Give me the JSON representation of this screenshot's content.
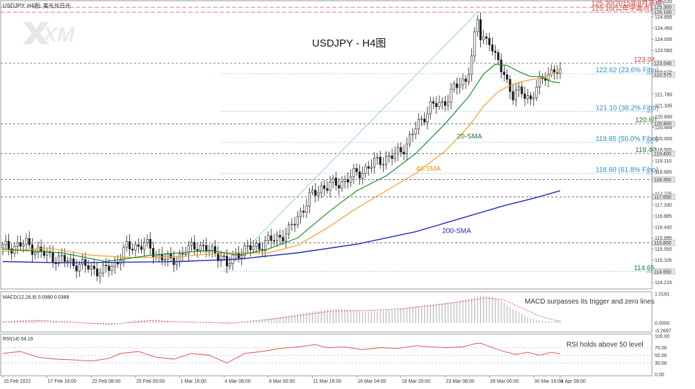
{
  "header": {
    "symbol_label": "USDJPY, H4图: 美元兑日元",
    "watermark": "XM",
    "title": "USDJPY - H4图"
  },
  "chart_data": {
    "type": "candlestick",
    "price_range": [
      114.0,
      125.53
    ],
    "x_index_range": [
      0,
      189
    ],
    "price_ticks": [
      {
        "value": 125.53,
        "label": "125.530"
      },
      {
        "value": 124.895,
        "label": "124.895"
      },
      {
        "value": 124.45,
        "label": "124.450"
      },
      {
        "value": 124.005,
        "label": "124.005"
      },
      {
        "value": 123.56,
        "label": "123.560"
      },
      {
        "value": 122.67,
        "label": "122.670"
      },
      {
        "value": 121.78,
        "label": "121.780"
      },
      {
        "value": 121.335,
        "label": "121.335"
      },
      {
        "value": 120.89,
        "label": "120.890"
      },
      {
        "value": 120.445,
        "label": "120.445"
      },
      {
        "value": 120.0,
        "label": "120.000"
      },
      {
        "value": 119.555,
        "label": "119.555"
      },
      {
        "value": 119.11,
        "label": "119.110"
      },
      {
        "value": 118.665,
        "label": "118.665"
      },
      {
        "value": 117.775,
        "label": "117.775"
      },
      {
        "value": 117.33,
        "label": "117.330"
      },
      {
        "value": 116.885,
        "label": "116.885"
      },
      {
        "value": 116.44,
        "label": "116.440"
      },
      {
        "value": 115.995,
        "label": "115.995"
      },
      {
        "value": 115.55,
        "label": "115.550"
      },
      {
        "value": 115.105,
        "label": "115.105"
      },
      {
        "value": 114.215,
        "label": "114.215"
      }
    ],
    "level_boxes": [
      {
        "value": 125.3,
        "label": "125.300"
      },
      {
        "value": 125.1,
        "label": "125.100"
      },
      {
        "value": 123.04,
        "label": "123.040"
      },
      {
        "value": 122.575,
        "label": "122.575"
      },
      {
        "value": 120.6,
        "label": "120.600"
      },
      {
        "value": 119.4,
        "label": "119.400"
      },
      {
        "value": 118.35,
        "label": "118.350"
      },
      {
        "value": 117.65,
        "label": "117.650"
      },
      {
        "value": 115.8,
        "label": "115.800"
      },
      {
        "value": 114.65,
        "label": "114.650"
      }
    ],
    "x_labels": [
      {
        "i": 0,
        "label": "15 Feb 2022"
      },
      {
        "i": 15,
        "label": "17 Feb 16:00"
      },
      {
        "i": 30,
        "label": "22 Feb 08:00"
      },
      {
        "i": 45,
        "label": "25 Feb 00:00"
      },
      {
        "i": 60,
        "label": "1 Mar 16:00"
      },
      {
        "i": 75,
        "label": "4 Mar 08:00"
      },
      {
        "i": 90,
        "label": "9 Mar 00:00"
      },
      {
        "i": 105,
        "label": "11 Mar 16:00"
      },
      {
        "i": 120,
        "label": "16 Mar 04:00"
      },
      {
        "i": 135,
        "label": "18 Mar 20:00"
      },
      {
        "i": 150,
        "label": "23 Mar 08:00"
      },
      {
        "i": 165,
        "label": "28 Mar 00:00"
      },
      {
        "i": 180,
        "label": "30 Mar 16:00"
      },
      {
        "i": 189,
        "label": "4 Apr 08:00"
      }
    ],
    "horizontal_levels": [
      {
        "value": 125.3,
        "label": "125.30(2015年8月高点)",
        "style": "red-dash"
      },
      {
        "value": 125.1,
        "label": "125.10(公年字高点)",
        "style": "red-dash"
      },
      {
        "value": 123.04,
        "label": "123.04",
        "style": "gray-dash"
      },
      {
        "value": 122.62,
        "label": "122.62 (23.6% Fibo)",
        "style": "fibo",
        "tag": "23.6"
      },
      {
        "value": 121.1,
        "label": "121.10 (38.2% Fibo)",
        "style": "fibo",
        "tag": "38.2"
      },
      {
        "value": 120.6,
        "label": "120.60",
        "style": "gray-dash"
      },
      {
        "value": 119.85,
        "label": "119.85 (50.0% Fibo)",
        "style": "fibo",
        "tag": "50.0"
      },
      {
        "value": 119.4,
        "label": "119.40",
        "style": "gray-dash"
      },
      {
        "value": 118.6,
        "label": "118.60 (61.8% Fibo)",
        "style": "fibo",
        "tag": "61.8"
      },
      {
        "value": 118.35,
        "label": "",
        "style": "gray-dash"
      },
      {
        "value": 117.65,
        "label": "",
        "style": "gray-dash"
      },
      {
        "value": 115.8,
        "label": "",
        "style": "gray-dash"
      },
      {
        "value": 114.65,
        "label": "114.65",
        "style": "fibo",
        "tag": "100.0"
      }
    ],
    "fibo_trendline": [
      {
        "i": 75,
        "v": 114.65
      },
      {
        "i": 161,
        "v": 125.1
      }
    ],
    "sma_labels": [
      {
        "text": "20-SMA",
        "i": 154,
        "v": 120.0
      },
      {
        "text": "40-SMA",
        "i": 140,
        "v": 118.7
      },
      {
        "text": "200-SMA",
        "i": 149,
        "v": 116.2
      }
    ],
    "price_anchors": [
      [
        0,
        115.6
      ],
      [
        8,
        115.75
      ],
      [
        14,
        115.35
      ],
      [
        22,
        115.05
      ],
      [
        28,
        114.85
      ],
      [
        34,
        114.65
      ],
      [
        38,
        114.95
      ],
      [
        42,
        115.6
      ],
      [
        48,
        115.75
      ],
      [
        52,
        115.35
      ],
      [
        57,
        115.05
      ],
      [
        62,
        115.45
      ],
      [
        66,
        115.75
      ],
      [
        70,
        115.45
      ],
      [
        74,
        115.35
      ],
      [
        76,
        114.85
      ],
      [
        80,
        115.45
      ],
      [
        86,
        115.65
      ],
      [
        92,
        115.95
      ],
      [
        97,
        116.25
      ],
      [
        100,
        116.85
      ],
      [
        104,
        117.6
      ],
      [
        108,
        118.05
      ],
      [
        113,
        118.15
      ],
      [
        118,
        118.45
      ],
      [
        124,
        118.85
      ],
      [
        128,
        119.15
      ],
      [
        133,
        119.3
      ],
      [
        137,
        119.8
      ],
      [
        141,
        120.6
      ],
      [
        145,
        121.3
      ],
      [
        149,
        121.4
      ],
      [
        153,
        122.0
      ],
      [
        157,
        122.4
      ],
      [
        159,
        123.3
      ],
      [
        161,
        124.75
      ],
      [
        162,
        124.1
      ],
      [
        165,
        124.0
      ],
      [
        167,
        123.2
      ],
      [
        170,
        122.65
      ],
      [
        173,
        121.7
      ],
      [
        176,
        121.9
      ],
      [
        179,
        121.6
      ],
      [
        182,
        122.2
      ],
      [
        184,
        122.6
      ],
      [
        187,
        122.75
      ],
      [
        189,
        122.55
      ]
    ],
    "sma20": [
      [
        0,
        115.55
      ],
      [
        20,
        115.4
      ],
      [
        35,
        115.05
      ],
      [
        50,
        115.3
      ],
      [
        70,
        115.5
      ],
      [
        80,
        115.3
      ],
      [
        90,
        115.55
      ],
      [
        100,
        116.0
      ],
      [
        110,
        117.0
      ],
      [
        120,
        117.9
      ],
      [
        130,
        118.5
      ],
      [
        140,
        119.4
      ],
      [
        150,
        120.6
      ],
      [
        158,
        121.7
      ],
      [
        163,
        122.6
      ],
      [
        167,
        123.0
      ],
      [
        171,
        122.95
      ],
      [
        175,
        122.7
      ],
      [
        179,
        122.5
      ],
      [
        183,
        122.5
      ],
      [
        186,
        122.3
      ],
      [
        189,
        122.25
      ]
    ],
    "sma40": [
      [
        0,
        115.45
      ],
      [
        15,
        115.6
      ],
      [
        30,
        115.3
      ],
      [
        45,
        115.2
      ],
      [
        60,
        115.25
      ],
      [
        75,
        115.4
      ],
      [
        90,
        115.4
      ],
      [
        100,
        115.7
      ],
      [
        110,
        116.4
      ],
      [
        120,
        117.2
      ],
      [
        130,
        117.9
      ],
      [
        140,
        118.6
      ],
      [
        150,
        119.5
      ],
      [
        158,
        120.5
      ],
      [
        163,
        121.3
      ],
      [
        168,
        121.9
      ],
      [
        173,
        122.2
      ],
      [
        178,
        122.35
      ],
      [
        183,
        122.45
      ],
      [
        189,
        122.7
      ]
    ],
    "sma200": [
      [
        0,
        115.05
      ],
      [
        20,
        115.0
      ],
      [
        40,
        115.02
      ],
      [
        60,
        115.05
      ],
      [
        80,
        115.15
      ],
      [
        100,
        115.4
      ],
      [
        120,
        115.75
      ],
      [
        140,
        116.25
      ],
      [
        150,
        116.6
      ],
      [
        160,
        116.95
      ],
      [
        170,
        117.3
      ],
      [
        180,
        117.6
      ],
      [
        189,
        117.9
      ]
    ],
    "macd": {
      "label": "MACD(12,26,9) 0.0980 0.0388",
      "annotation": "MACD surpasses its trigger and zero lines",
      "range": [
        -0.2697,
        1.0181
      ],
      "ticks": [
        {
          "value": 1.0181,
          "label": "1.0181"
        },
        {
          "value": 0.0,
          "label": "0.0000"
        },
        {
          "value": -0.2697,
          "label": "-0.2697"
        }
      ],
      "anchors": [
        [
          0,
          0.05
        ],
        [
          10,
          0.12
        ],
        [
          20,
          0.04
        ],
        [
          30,
          -0.05
        ],
        [
          36,
          -0.08
        ],
        [
          45,
          0.1
        ],
        [
          52,
          0.12
        ],
        [
          60,
          0.0
        ],
        [
          70,
          0.05
        ],
        [
          76,
          -0.06
        ],
        [
          84,
          0.05
        ],
        [
          92,
          0.18
        ],
        [
          100,
          0.3
        ],
        [
          108,
          0.45
        ],
        [
          115,
          0.48
        ],
        [
          122,
          0.42
        ],
        [
          130,
          0.44
        ],
        [
          138,
          0.55
        ],
        [
          146,
          0.66
        ],
        [
          152,
          0.72
        ],
        [
          158,
          0.85
        ],
        [
          162,
          0.96
        ],
        [
          166,
          0.92
        ],
        [
          170,
          0.7
        ],
        [
          174,
          0.42
        ],
        [
          178,
          0.2
        ],
        [
          182,
          0.08
        ],
        [
          186,
          0.05
        ],
        [
          189,
          0.1
        ]
      ],
      "signal_anchors": [
        [
          0,
          0.04
        ],
        [
          14,
          0.08
        ],
        [
          28,
          0.0
        ],
        [
          38,
          -0.04
        ],
        [
          50,
          0.08
        ],
        [
          64,
          0.03
        ],
        [
          78,
          0.0
        ],
        [
          90,
          0.12
        ],
        [
          102,
          0.28
        ],
        [
          112,
          0.42
        ],
        [
          124,
          0.44
        ],
        [
          136,
          0.5
        ],
        [
          148,
          0.64
        ],
        [
          158,
          0.78
        ],
        [
          164,
          0.88
        ],
        [
          170,
          0.8
        ],
        [
          176,
          0.52
        ],
        [
          182,
          0.24
        ],
        [
          189,
          0.05
        ]
      ]
    },
    "rsi": {
      "label": "RSI(14) 54.19",
      "annotation": "RSI holds above 50 level",
      "range": [
        0,
        100
      ],
      "ticks": [
        {
          "value": 100,
          "label": "100.00"
        },
        {
          "value": 70,
          "label": "70.00"
        },
        {
          "value": 50,
          "label": "50.00"
        },
        {
          "value": 30,
          "label": "30.00"
        },
        {
          "value": 0,
          "label": "0.00"
        }
      ],
      "anchors": [
        [
          0,
          55
        ],
        [
          6,
          60
        ],
        [
          12,
          45
        ],
        [
          18,
          40
        ],
        [
          24,
          38
        ],
        [
          30,
          35
        ],
        [
          36,
          42
        ],
        [
          40,
          55
        ],
        [
          46,
          60
        ],
        [
          52,
          45
        ],
        [
          58,
          40
        ],
        [
          64,
          55
        ],
        [
          70,
          50
        ],
        [
          76,
          30
        ],
        [
          82,
          55
        ],
        [
          88,
          60
        ],
        [
          94,
          68
        ],
        [
          100,
          72
        ],
        [
          106,
          78
        ],
        [
          110,
          70
        ],
        [
          116,
          72
        ],
        [
          122,
          65
        ],
        [
          128,
          70
        ],
        [
          134,
          68
        ],
        [
          140,
          75
        ],
        [
          146,
          72
        ],
        [
          150,
          70
        ],
        [
          156,
          72
        ],
        [
          160,
          80
        ],
        [
          162,
          82
        ],
        [
          166,
          70
        ],
        [
          170,
          60
        ],
        [
          174,
          52
        ],
        [
          178,
          58
        ],
        [
          182,
          50
        ],
        [
          186,
          58
        ],
        [
          189,
          54
        ]
      ]
    }
  }
}
